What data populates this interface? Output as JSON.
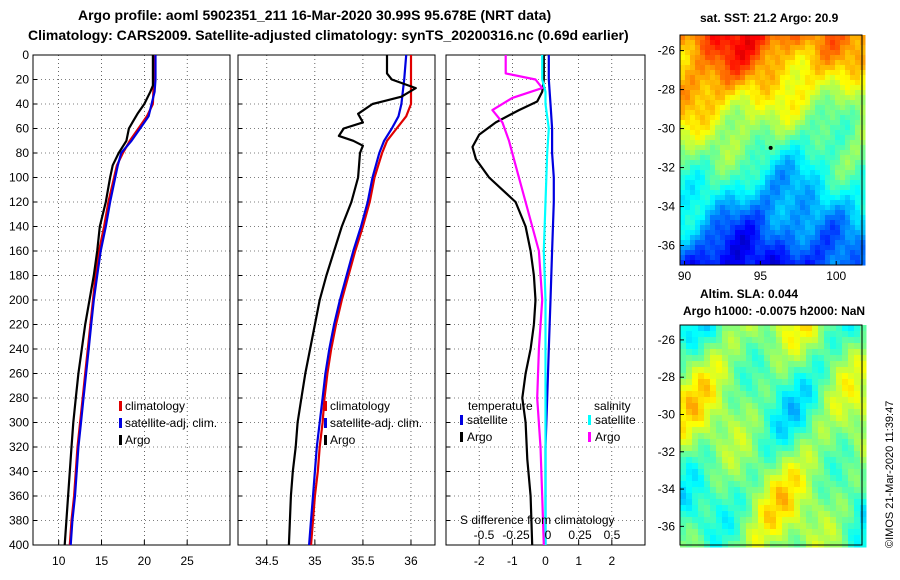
{
  "title": {
    "line1": "Argo profile: aoml 5902351_211 16-Mar-2020 30.99S 95.678E (NRT data)",
    "line2": "Climatology: CARS2009. Satellite-adjusted climatology: synTS_20200316.nc (0.69d earlier)"
  },
  "credit": "©IMOS 21-Mar-2020 11:39:47",
  "colors": {
    "climatology": "#e00000",
    "satellite_adj": "#0000e0",
    "argo": "#000000",
    "sal_satellite": "#00ffff",
    "sal_argo": "#ff00ff"
  },
  "chart_data": [
    {
      "type": "line",
      "name": "temperature-profile",
      "xlabel": "",
      "ylabel": "depth",
      "xlim": [
        7,
        30
      ],
      "ylim": [
        400,
        0
      ],
      "grid": true,
      "xticks": [
        10,
        15,
        20,
        25
      ],
      "yticks": [
        0,
        20,
        40,
        60,
        80,
        100,
        120,
        140,
        160,
        180,
        200,
        220,
        240,
        260,
        280,
        300,
        320,
        340,
        360,
        380,
        400
      ],
      "legend": [
        "climatology",
        "satellite-adj. clim.",
        "Argo"
      ],
      "series": [
        {
          "name": "climatology",
          "color": "#e00000",
          "x": [
            21.1,
            21.1,
            21.0,
            20.3,
            19.3,
            18.3,
            17.5,
            16.8,
            15.8,
            15.3,
            14.7,
            14.3,
            14.0,
            13.7,
            13.4,
            13.1,
            12.8,
            12.5,
            12.2,
            12.0,
            11.8,
            11.5,
            11.3
          ],
          "y": [
            0,
            20,
            40,
            50,
            60,
            70,
            80,
            90,
            120,
            140,
            160,
            180,
            200,
            220,
            240,
            260,
            280,
            300,
            320,
            340,
            360,
            380,
            400
          ]
        },
        {
          "name": "satellite-adj. clim.",
          "color": "#0000e0",
          "x": [
            21.3,
            21.3,
            21.2,
            20.5,
            19.5,
            18.5,
            17.3,
            16.9,
            16.0,
            15.5,
            14.9,
            14.5,
            14.1,
            13.8,
            13.5,
            13.2,
            12.9,
            12.6,
            12.3,
            12.1,
            11.9,
            11.6,
            11.4
          ],
          "y": [
            0,
            20,
            30,
            50,
            60,
            70,
            80,
            90,
            120,
            140,
            160,
            180,
            200,
            220,
            240,
            260,
            280,
            300,
            320,
            340,
            360,
            380,
            400
          ]
        },
        {
          "name": "Argo",
          "color": "#000000",
          "x": [
            21.0,
            21.0,
            20.7,
            20.0,
            19.2,
            18.6,
            18.2,
            17.9,
            17.0,
            16.3,
            16.0,
            15.5,
            14.8,
            14.5,
            14.1,
            13.6,
            13.1,
            12.7,
            12.3,
            12.0,
            11.7,
            11.5,
            11.3,
            11.1,
            10.9,
            10.7
          ],
          "y": [
            0,
            25,
            30,
            40,
            48,
            55,
            60,
            70,
            80,
            90,
            100,
            120,
            140,
            160,
            180,
            200,
            220,
            240,
            260,
            280,
            300,
            320,
            340,
            360,
            380,
            400
          ]
        }
      ]
    },
    {
      "type": "line",
      "name": "salinity-profile",
      "xlim": [
        34.2,
        36.25
      ],
      "ylim": [
        400,
        0
      ],
      "grid": true,
      "xticks": [
        34.5,
        35,
        35.5,
        36
      ],
      "legend": [
        "climatology",
        "satellite-adj. clim.",
        "Argo"
      ],
      "series": [
        {
          "name": "climatology",
          "color": "#e00000",
          "x": [
            36.0,
            36.0,
            36.0,
            35.95,
            35.85,
            35.75,
            35.7,
            35.62,
            35.57,
            35.5,
            35.42,
            35.35,
            35.28,
            35.22,
            35.17,
            35.13,
            35.1,
            35.08,
            35.05,
            35.03,
            35.0,
            34.98,
            34.96
          ],
          "y": [
            0,
            20,
            40,
            50,
            60,
            70,
            80,
            100,
            120,
            140,
            160,
            180,
            200,
            220,
            240,
            260,
            280,
            300,
            320,
            340,
            360,
            380,
            400
          ]
        },
        {
          "name": "satellite-adj. clim.",
          "color": "#0000e0",
          "x": [
            35.95,
            35.93,
            35.9,
            35.87,
            35.8,
            35.72,
            35.67,
            35.6,
            35.55,
            35.48,
            35.4,
            35.33,
            35.26,
            35.2,
            35.15,
            35.11,
            35.08,
            35.05,
            35.02,
            35.0,
            34.98,
            34.96,
            34.94
          ],
          "y": [
            0,
            20,
            40,
            50,
            60,
            70,
            80,
            100,
            120,
            140,
            160,
            180,
            200,
            220,
            240,
            260,
            280,
            300,
            320,
            340,
            360,
            380,
            400
          ]
        },
        {
          "name": "Argo",
          "color": "#000000",
          "x": [
            35.75,
            35.75,
            35.8,
            36.05,
            35.9,
            35.6,
            35.45,
            35.5,
            35.3,
            35.25,
            35.4,
            35.5,
            35.47,
            35.45,
            35.38,
            35.28,
            35.2,
            35.12,
            35.05,
            35.0,
            34.95,
            34.9,
            34.86,
            34.82,
            34.8,
            34.77,
            34.75,
            34.73
          ],
          "y": [
            0,
            15,
            20,
            27,
            34,
            40,
            48,
            55,
            60,
            66,
            70,
            74,
            80,
            100,
            120,
            140,
            160,
            180,
            200,
            220,
            240,
            260,
            280,
            300,
            320,
            340,
            360,
            400
          ]
        }
      ]
    },
    {
      "type": "line",
      "name": "difference-from-climatology",
      "xlim": [
        -3,
        3
      ],
      "ylim": [
        400,
        0
      ],
      "grid": true,
      "xticks": [
        -2,
        -1,
        0,
        1,
        2
      ],
      "secondary_xlabel": "S difference from climatology",
      "secondary_xticks": [
        -0.5,
        -0.25,
        0,
        0.25,
        0.5
      ],
      "legend": {
        "temperature": [
          "satellite",
          "Argo"
        ],
        "salinity": [
          "satellite",
          "Argo"
        ]
      },
      "series": [
        {
          "name": "temperature satellite",
          "color": "#0000e0",
          "x": [
            0.1,
            0.1,
            0.15,
            0.2,
            0.2,
            0.25,
            0.25,
            0.2,
            0.15,
            0.1,
            0.05,
            0.0,
            0.0,
            0.0
          ],
          "y": [
            0,
            20,
            40,
            60,
            80,
            100,
            120,
            160,
            200,
            240,
            280,
            320,
            360,
            400
          ]
        },
        {
          "name": "temperature Argo",
          "color": "#000000",
          "x": [
            -0.05,
            -0.05,
            -0.1,
            -0.25,
            -0.8,
            -1.5,
            -2.0,
            -2.2,
            -2.1,
            -1.7,
            -1.3,
            -0.9,
            -0.6,
            -0.45,
            -0.35,
            -0.3,
            -0.35,
            -0.45,
            -0.6,
            -0.7,
            -0.6,
            -0.55,
            -0.45,
            -0.4
          ],
          "y": [
            0,
            20,
            30,
            38,
            45,
            55,
            65,
            75,
            85,
            100,
            110,
            120,
            140,
            160,
            180,
            200,
            220,
            240,
            260,
            280,
            300,
            330,
            360,
            400
          ]
        },
        {
          "name": "salinity satellite",
          "color": "#00ffff",
          "x": [
            -0.1,
            -0.1,
            0.0,
            0.0,
            0.1,
            0.05,
            0.0,
            -0.05,
            0.0,
            0.0,
            0.0,
            0.0
          ],
          "y": [
            0,
            20,
            30,
            40,
            60,
            80,
            120,
            160,
            200,
            280,
            340,
            400
          ]
        },
        {
          "name": "salinity Argo",
          "color": "#ff00ff",
          "x": [
            -1.2,
            -1.2,
            -0.3,
            -0.1,
            -1.0,
            -1.6,
            -1.3,
            -1.1,
            -0.9,
            -0.6,
            -0.2,
            -0.1,
            -0.2,
            -0.25,
            -0.15,
            -0.1,
            -0.05
          ],
          "y": [
            0,
            15,
            20,
            27,
            35,
            45,
            55,
            70,
            90,
            120,
            160,
            200,
            240,
            280,
            320,
            360,
            400
          ]
        }
      ]
    },
    {
      "type": "heatmap",
      "name": "satellite-sst-map",
      "title": "sat. SST: 21.2  Argo: 20.9",
      "xticks": [
        90,
        95,
        100
      ],
      "yticks": [
        -26,
        -28,
        -30,
        -32,
        -34,
        -36
      ],
      "xlim": [
        89.7,
        101.7
      ],
      "ylim": [
        -37,
        -25.2
      ]
    },
    {
      "type": "heatmap",
      "name": "altimetry-sla-map",
      "title1": "Altim. SLA: 0.044",
      "title2": "Argo h1000: -0.0075 h2000: NaN",
      "yticks": [
        -26,
        -28,
        -30,
        -32,
        -34,
        -36
      ],
      "ylim": [
        -37,
        -25.2
      ]
    }
  ]
}
